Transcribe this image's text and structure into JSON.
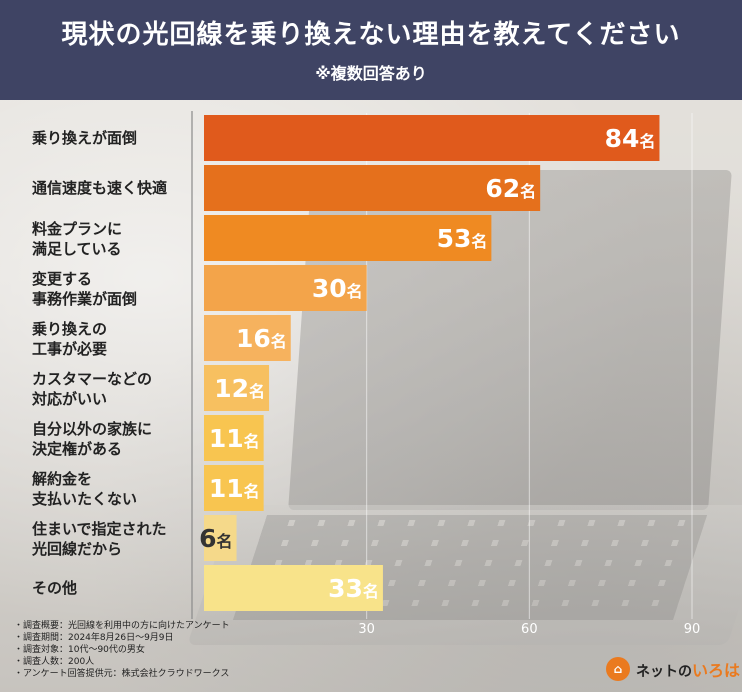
{
  "header": {
    "title": "現状の光回線を乗り換えない理由を教えてください",
    "subtitle": "※複数回答あり"
  },
  "chart_data": {
    "type": "bar",
    "orientation": "horizontal",
    "title": "現状の光回線を乗り換えない理由を教えてください",
    "subtitle": "※複数回答あり",
    "unit": "名",
    "categories": [
      [
        "乗り換えが面倒"
      ],
      [
        "通信速度も速く快適"
      ],
      [
        "料金プランに",
        "満足している"
      ],
      [
        "変更する",
        "事務作業が面倒"
      ],
      [
        "乗り換えの",
        "工事が必要"
      ],
      [
        "カスタマーなどの",
        "対応がいい"
      ],
      [
        "自分以外の家族に",
        "決定権がある"
      ],
      [
        "解約金を",
        "支払いたくない"
      ],
      [
        "住まいで指定された",
        "光回線だから"
      ],
      [
        "その他"
      ]
    ],
    "values": [
      84,
      62,
      53,
      30,
      16,
      12,
      11,
      11,
      6,
      33
    ],
    "colors": [
      "#e05a1c",
      "#e5701c",
      "#ef8a22",
      "#f3a44a",
      "#f6b25e",
      "#f7c060",
      "#f8c550",
      "#f8c550",
      "#f5d98a",
      "#f8e38a"
    ],
    "xlim": [
      0,
      90
    ],
    "xticks": [
      30,
      60,
      90
    ],
    "grid": true
  },
  "footnotes": [
    "・調査概要：光回線を利用中の方に向けたアンケート",
    "・調査期間：2024年8月26日～9月9日",
    "・調査対象：10代～90代の男女",
    "・調査人数：200人",
    "・アンケート回答提供元：株式会社クラウドワークス"
  ],
  "logo": {
    "mark": "⌂",
    "text_before": "ネットの",
    "text_accent": "いろは"
  }
}
